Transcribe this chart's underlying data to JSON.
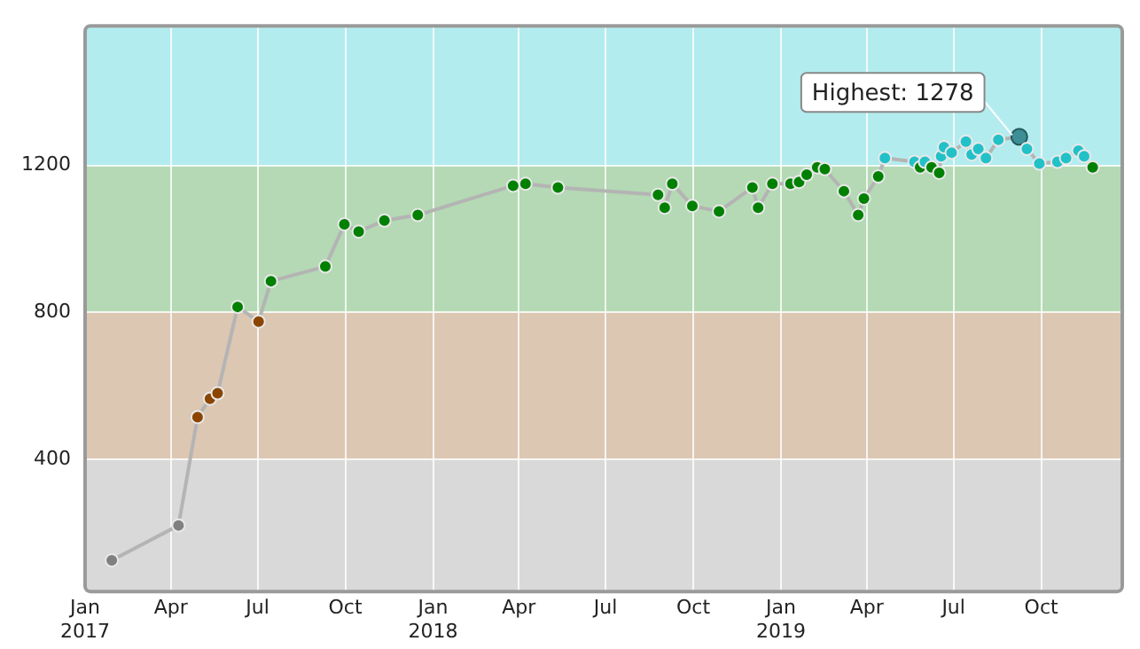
{
  "chart_data": {
    "type": "line",
    "x": [
      "2017-01-29",
      "2017-04-09",
      "2017-04-29",
      "2017-05-12",
      "2017-05-20",
      "2017-06-10",
      "2017-07-02",
      "2017-07-15",
      "2017-09-10",
      "2017-09-30",
      "2017-10-15",
      "2017-11-11",
      "2017-12-16",
      "2018-03-26",
      "2018-04-08",
      "2018-05-12",
      "2018-08-25",
      "2018-09-01",
      "2018-09-09",
      "2018-09-30",
      "2018-10-28",
      "2018-12-02",
      "2018-12-08",
      "2018-12-23",
      "2019-01-11",
      "2019-01-20",
      "2019-01-28",
      "2019-02-08",
      "2019-02-16",
      "2019-03-08",
      "2019-03-23",
      "2019-03-29",
      "2019-04-13",
      "2019-04-20",
      "2019-05-21",
      "2019-05-27",
      "2019-06-01",
      "2019-06-08",
      "2019-06-16",
      "2019-06-18",
      "2019-06-21",
      "2019-06-29",
      "2019-07-14",
      "2019-07-20",
      "2019-07-27",
      "2019-08-04",
      "2019-08-17",
      "2019-09-08",
      "2019-09-16",
      "2019-09-29",
      "2019-10-18",
      "2019-10-27",
      "2019-11-09",
      "2019-11-15",
      "2019-11-24"
    ],
    "series": [
      {
        "color": "#b4b4b4",
        "values": [
          125,
          220,
          515,
          565,
          580,
          815,
          775,
          885,
          925,
          1040,
          1020,
          1050,
          1065,
          1145,
          1150,
          1140,
          1120,
          1085,
          1150,
          1090,
          1075,
          1140,
          1085,
          1150,
          1150,
          1155,
          1175,
          1195,
          1190,
          1130,
          1065,
          1110,
          1170,
          1220,
          1210,
          1195,
          1210,
          1195,
          1180,
          1225,
          1250,
          1235,
          1265,
          1230,
          1245,
          1220,
          1270,
          1278,
          1245,
          1205,
          1210,
          1220,
          1240,
          1225,
          1195
        ],
        "colors": [
          "#808080",
          "#808080",
          "#8b4500",
          "#8b4500",
          "#8b4500",
          "#008000",
          "#8b4500",
          "#008000",
          "#008000",
          "#008000",
          "#008000",
          "#008000",
          "#008000",
          "#008000",
          "#008000",
          "#008000",
          "#008000",
          "#008000",
          "#008000",
          "#008000",
          "#008000",
          "#008000",
          "#008000",
          "#008000",
          "#008000",
          "#008000",
          "#008000",
          "#008000",
          "#008000",
          "#008000",
          "#008000",
          "#008000",
          "#008000",
          "#22c1c8",
          "#22c1c8",
          "#008000",
          "#22c1c8",
          "#008000",
          "#008000",
          "#22c1c8",
          "#22c1c8",
          "#22c1c8",
          "#22c1c8",
          "#22c1c8",
          "#22c1c8",
          "#22c1c8",
          "#22c1c8",
          "#3d8f95",
          "#22c1c8",
          "#22c1c8",
          "#22c1c8",
          "#22c1c8",
          "#22c1c8",
          "#22c1c8",
          "#008000"
        ]
      }
    ],
    "xlim": [
      "2017-01-01",
      "2019-12-25"
    ],
    "xticks": [
      {
        "value": "2017-01-01",
        "label": "Jan 2017"
      },
      {
        "value": "2017-04-01",
        "label": "Apr"
      },
      {
        "value": "2017-07-01",
        "label": "Jul"
      },
      {
        "value": "2017-10-01",
        "label": "Oct"
      },
      {
        "value": "2018-01-01",
        "label": "Jan 2018"
      },
      {
        "value": "2018-04-01",
        "label": "Apr"
      },
      {
        "value": "2018-07-01",
        "label": "Jul"
      },
      {
        "value": "2018-10-01",
        "label": "Oct"
      },
      {
        "value": "2019-01-01",
        "label": "Jan 2019"
      },
      {
        "value": "2019-04-01",
        "label": "Apr"
      },
      {
        "value": "2019-07-01",
        "label": "Jul"
      },
      {
        "value": "2019-10-01",
        "label": "Oct"
      }
    ],
    "ylim": [
      40,
      1580
    ],
    "yticks": [
      400,
      800,
      1200
    ],
    "bands": [
      {
        "axis": "y",
        "from": 40,
        "to": 400,
        "color": "#d9d9d9"
      },
      {
        "axis": "y",
        "from": 400,
        "to": 800,
        "color": "#dcc7b3"
      },
      {
        "axis": "y",
        "from": 800,
        "to": 1200,
        "color": "#b4d9b4"
      },
      {
        "axis": "y",
        "from": 1200,
        "to": 1580,
        "color": "#b3ecee"
      }
    ],
    "annotations": [
      {
        "text": "Highest: 1278",
        "x": "2019-09-08",
        "y": 1278
      }
    ],
    "grid": true,
    "marker": "circle",
    "line_style": "solid",
    "legend": false
  }
}
